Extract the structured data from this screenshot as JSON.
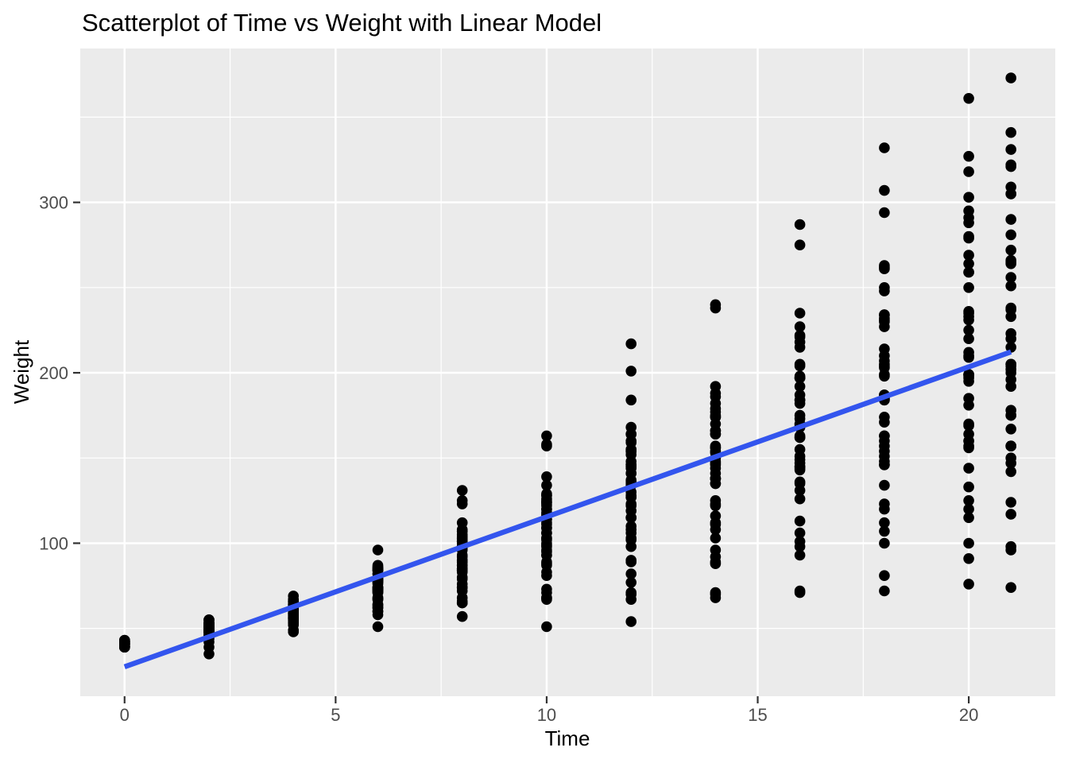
{
  "chart_data": {
    "type": "scatter",
    "title": "Scatterplot of Time vs Weight with Linear Model",
    "xlabel": "Time",
    "ylabel": "Weight",
    "x_ticks": [
      0,
      5,
      10,
      15,
      20
    ],
    "y_ticks": [
      100,
      200,
      300
    ],
    "x_minor_gridlines": [
      2.5,
      7.5,
      12.5,
      17.5
    ],
    "y_minor_gridlines": [
      50,
      150,
      250,
      350
    ],
    "xlim": [
      -1.05,
      22.05
    ],
    "ylim": [
      10.2,
      390.3
    ],
    "grid": "on",
    "legend_position": "none",
    "style": {
      "panel_background": "#EBEBEB",
      "gridline_color": "#FFFFFF",
      "point_color": "#000000",
      "point_radius": 6.8,
      "tick_mark_color": "#333333",
      "axis_text_color": "#4D4D4D",
      "line_color": "#3355EE",
      "line_width": 6.5
    },
    "regression_line": {
      "intercept": 27.47,
      "slope": 8.8,
      "x_from": 0,
      "x_to": 21
    },
    "times": [
      0,
      2,
      4,
      6,
      8,
      10,
      12,
      14,
      16,
      18,
      20,
      21
    ],
    "weights_by_chick": [
      [
        42,
        51,
        59,
        64,
        76,
        93,
        106,
        125,
        149,
        171,
        199,
        205
      ],
      [
        40,
        49,
        58,
        72,
        84,
        103,
        122,
        138,
        162,
        187,
        209,
        215
      ],
      [
        43,
        39,
        55,
        67,
        84,
        99,
        115,
        138,
        163,
        187,
        198,
        202
      ],
      [
        42,
        49,
        56,
        67,
        74,
        87,
        102,
        108,
        136,
        154,
        160,
        157
      ],
      [
        41,
        42,
        48,
        60,
        79,
        106,
        141,
        164,
        197,
        199,
        220,
        223
      ],
      [
        41,
        49,
        59,
        74,
        97,
        124,
        141,
        148,
        155,
        160,
        160,
        157
      ],
      [
        41,
        49,
        57,
        71,
        89,
        112,
        146,
        174,
        218,
        250,
        288,
        305
      ],
      [
        42,
        50,
        61,
        71,
        84,
        93,
        110,
        116,
        126,
        134,
        125
      ],
      [
        42,
        51,
        59,
        68,
        85,
        96,
        90,
        92,
        93,
        100,
        100,
        98
      ],
      [
        41,
        44,
        52,
        63,
        74,
        81,
        89,
        96,
        101,
        112,
        120,
        124
      ],
      [
        43,
        51,
        63,
        84,
        112,
        139,
        168,
        177,
        182,
        184,
        181,
        175
      ],
      [
        41,
        49,
        56,
        62,
        72,
        88,
        119,
        135,
        162,
        185,
        195,
        205
      ],
      [
        41,
        48,
        53,
        60,
        65,
        67,
        71,
        70,
        71,
        81,
        91,
        96
      ],
      [
        41,
        49,
        62,
        79,
        101,
        128,
        164,
        192,
        227,
        248,
        259,
        266
      ],
      [
        41,
        49,
        56,
        64,
        68,
        68,
        67,
        68
      ],
      [
        41,
        45,
        49,
        51,
        57,
        51,
        54
      ],
      [
        42,
        51,
        61,
        72,
        83,
        89,
        98,
        103,
        113,
        123,
        133,
        142
      ],
      [
        39,
        35
      ],
      [
        43,
        48,
        55,
        62,
        65,
        71,
        82,
        88,
        106,
        120,
        144,
        157
      ],
      [
        41,
        47,
        54,
        58,
        65,
        73,
        77,
        89,
        98,
        107,
        115,
        117
      ],
      [
        40,
        50,
        62,
        86,
        125,
        163,
        217,
        240,
        275,
        307,
        318,
        331
      ],
      [
        41,
        55,
        64,
        77,
        90,
        95,
        108,
        111,
        131,
        148,
        164,
        167
      ],
      [
        43,
        52,
        61,
        73,
        90,
        103,
        127,
        135,
        145,
        163,
        170,
        175
      ],
      [
        42,
        52,
        58,
        74,
        66,
        68,
        70,
        71,
        72,
        72,
        76,
        74
      ],
      [
        40,
        49,
        62,
        78,
        102,
        124,
        146,
        164,
        197,
        231,
        259,
        265
      ],
      [
        42,
        48,
        57,
        74,
        93,
        114,
        136,
        147,
        169,
        205,
        236,
        251
      ],
      [
        39,
        46,
        58,
        73,
        87,
        100,
        115,
        123,
        144,
        163,
        185,
        192
      ],
      [
        39,
        46,
        58,
        73,
        92,
        114,
        145,
        156,
        184,
        207,
        212,
        233
      ],
      [
        39,
        48,
        59,
        74,
        87,
        106,
        134,
        150,
        187,
        230,
        279,
        309
      ],
      [
        42,
        48,
        59,
        72,
        85,
        98,
        115,
        122,
        143,
        151,
        157,
        150
      ],
      [
        42,
        53,
        62,
        73,
        85,
        102,
        123,
        138,
        170,
        204,
        235,
        256
      ],
      [
        41,
        49,
        65,
        82,
        107,
        129,
        159,
        179,
        221,
        263,
        291,
        305
      ],
      [
        39,
        50,
        63,
        77,
        96,
        111,
        137,
        144,
        151,
        146,
        156,
        147
      ],
      [
        41,
        49,
        63,
        85,
        107,
        134,
        164,
        186,
        235,
        294,
        327,
        341
      ],
      [
        41,
        53,
        64,
        87,
        123,
        158,
        201,
        238,
        287,
        332,
        361,
        373
      ],
      [
        39,
        48,
        61,
        76,
        98,
        116,
        145,
        166,
        198,
        227,
        225,
        220
      ],
      [
        41,
        48,
        56,
        68,
        80,
        83,
        103,
        112,
        135,
        157,
        169,
        178
      ],
      [
        41,
        49,
        61,
        74,
        98,
        109,
        128,
        154,
        192,
        232,
        280,
        290
      ],
      [
        42,
        50,
        61,
        78,
        89,
        109,
        130,
        146,
        170,
        214,
        250,
        272
      ],
      [
        41,
        55,
        66,
        79,
        101,
        120,
        154,
        182,
        215,
        262,
        295,
        321
      ],
      [
        42,
        51,
        66,
        85,
        103,
        124,
        155,
        153,
        175,
        184,
        199,
        204
      ],
      [
        42,
        49,
        63,
        84,
        103,
        126,
        160,
        174,
        204,
        234,
        269,
        281
      ],
      [
        42,
        55,
        69,
        96,
        131,
        157,
        184,
        188,
        197,
        198,
        199,
        200
      ],
      [
        42,
        51,
        65,
        86,
        103,
        118,
        127,
        138,
        145,
        146
      ],
      [
        41,
        50,
        61,
        78,
        98,
        117,
        135,
        141,
        147,
        174,
        197,
        196
      ],
      [
        40,
        52,
        62,
        82,
        101,
        120,
        144,
        156,
        173,
        210,
        231,
        238
      ],
      [
        41,
        53,
        66,
        79,
        100,
        123,
        148,
        157,
        168,
        185,
        210,
        205
      ],
      [
        39,
        50,
        62,
        80,
        104,
        125,
        154,
        170,
        222,
        261,
        303,
        322
      ],
      [
        40,
        53,
        64,
        85,
        108,
        128,
        152,
        166,
        184,
        203,
        233,
        237
      ],
      [
        41,
        54,
        67,
        84,
        105,
        122,
        155,
        175,
        205,
        234,
        264,
        264
      ]
    ]
  }
}
